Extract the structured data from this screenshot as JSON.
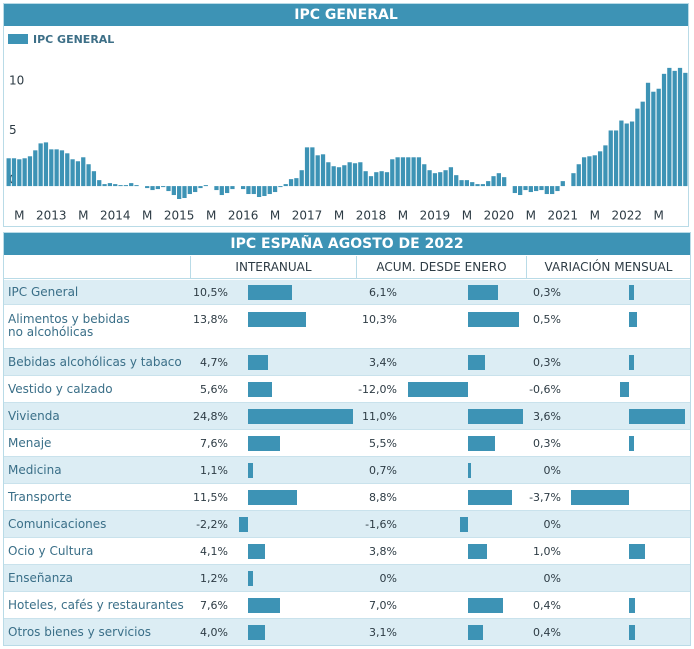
{
  "chart_data": {
    "type": "bar",
    "title": "IPC GENERAL",
    "categories": [
      null,
      null,
      "M",
      null,
      null,
      null,
      null,
      null,
      "2013",
      null,
      null,
      null,
      null,
      null,
      "M",
      null,
      null,
      null,
      null,
      null,
      "2014",
      null,
      null,
      null,
      null,
      null,
      "M",
      null,
      null,
      null,
      null,
      null,
      "2015",
      null,
      null,
      null,
      null,
      null,
      "M",
      null,
      null,
      null,
      null,
      null,
      "2016",
      null,
      null,
      null,
      null,
      null,
      "M",
      null,
      null,
      null,
      null,
      null,
      "2017",
      null,
      null,
      null,
      null,
      null,
      "M",
      null,
      null,
      null,
      null,
      null,
      "2018",
      null,
      null,
      null,
      null,
      null,
      "M",
      null,
      null,
      null,
      null,
      null,
      "2019",
      null,
      null,
      null,
      null,
      null,
      "M",
      null,
      null,
      null,
      null,
      null,
      "2020",
      null,
      null,
      null,
      null,
      null,
      "M",
      null,
      null,
      null,
      null,
      null,
      "2021",
      null,
      null,
      null,
      null,
      null,
      "M",
      null,
      null,
      null,
      null,
      null,
      "2022",
      null,
      null,
      null,
      null,
      null,
      "M",
      null,
      null,
      null,
      null,
      null
    ],
    "series": [
      {
        "name": "IPC GENERAL",
        "color": "#3d93b5",
        "values": [
          2.8,
          2.8,
          2.7,
          2.8,
          3.0,
          3.6,
          4.3,
          4.4,
          3.7,
          3.7,
          3.6,
          3.3,
          2.7,
          2.5,
          2.9,
          2.2,
          1.5,
          0.6,
          0.2,
          0.3,
          0.2,
          0.1,
          0.1,
          0.3,
          0.1,
          0.0,
          -0.2,
          -0.4,
          -0.3,
          -0.1,
          -0.5,
          -0.9,
          -1.3,
          -1.2,
          -0.8,
          -0.6,
          -0.2,
          0.1,
          0.0,
          -0.4,
          -0.9,
          -0.7,
          -0.3,
          0.0,
          -0.3,
          -0.8,
          -0.8,
          -1.1,
          -1.0,
          -0.8,
          -0.6,
          -0.1,
          0.2,
          0.7,
          0.8,
          1.6,
          3.9,
          3.9,
          3.1,
          3.2,
          2.4,
          2.0,
          1.9,
          2.1,
          2.4,
          2.3,
          2.4,
          1.5,
          1.0,
          1.4,
          1.5,
          1.4,
          2.7,
          2.9,
          2.9,
          2.9,
          2.9,
          2.9,
          2.2,
          1.6,
          1.3,
          1.4,
          1.6,
          1.9,
          1.1,
          0.6,
          0.6,
          0.4,
          0.2,
          0.2,
          0.5,
          1.0,
          1.3,
          0.9,
          0.0,
          -0.7,
          -0.9,
          -0.4,
          -0.6,
          -0.5,
          -0.4,
          -0.8,
          -0.8,
          -0.5,
          0.5,
          0.0,
          1.3,
          2.2,
          2.9,
          3.0,
          3.1,
          3.5,
          4.1,
          5.6,
          5.6,
          6.6,
          6.3,
          6.5,
          7.8,
          8.5,
          10.4,
          9.5,
          9.8,
          11.3,
          11.9,
          11.6,
          11.9,
          11.4
        ]
      }
    ],
    "ylim": [
      -1.4,
      13.8
    ],
    "yticks": [
      0,
      5,
      10
    ],
    "grid": false,
    "legend": "top-left"
  },
  "table": {
    "title": "IPC ESPAÑA AGOSTO DE 2022",
    "color": "#3d93b5",
    "columns": [
      {
        "name": "INTERANUAL",
        "xlim": [
          -2.6,
          25.3
        ]
      },
      {
        "name": "ACUM. DESDE ENERO",
        "xlim": [
          -12.5,
          11.3
        ]
      },
      {
        "name": "VARIACIÓN MENSUAL",
        "xlim": [
          -3.85,
          3.7
        ]
      }
    ],
    "rows": [
      {
        "label": "IPC General",
        "values": [
          10.5,
          6.1,
          0.3
        ],
        "value_labels": [
          "10,5%",
          "6,1%",
          "0,3%"
        ]
      },
      {
        "label": "Alimentos y bebidas no alcohólicas",
        "values": [
          13.8,
          10.3,
          0.5
        ],
        "value_labels": [
          "13,8%",
          "10,3%",
          "0,5%"
        ]
      },
      {
        "label": "Bebidas alcohólicas y tabaco",
        "values": [
          4.7,
          3.4,
          0.3
        ],
        "value_labels": [
          "4,7%",
          "3,4%",
          "0,3%"
        ]
      },
      {
        "label": "Vestido y calzado",
        "values": [
          5.6,
          -12.0,
          -0.6
        ],
        "value_labels": [
          "5,6%",
          "-12,0%",
          "-0,6%"
        ]
      },
      {
        "label": "Vivienda",
        "values": [
          24.8,
          11.0,
          3.6
        ],
        "value_labels": [
          "24,8%",
          "11,0%",
          "3,6%"
        ]
      },
      {
        "label": "Menaje",
        "values": [
          7.6,
          5.5,
          0.3
        ],
        "value_labels": [
          "7,6%",
          "5,5%",
          "0,3%"
        ]
      },
      {
        "label": "Medicina",
        "values": [
          1.1,
          0.7,
          0
        ],
        "value_labels": [
          "1,1%",
          "0,7%",
          "0%"
        ]
      },
      {
        "label": "Transporte",
        "values": [
          11.5,
          8.8,
          -3.7
        ],
        "value_labels": [
          "11,5%",
          "8,8%",
          "-3,7%"
        ]
      },
      {
        "label": "Comunicaciones",
        "values": [
          -2.2,
          -1.6,
          0
        ],
        "value_labels": [
          "-2,2%",
          "-1,6%",
          "0%"
        ]
      },
      {
        "label": "Ocio y Cultura",
        "values": [
          4.1,
          3.8,
          1.0
        ],
        "value_labels": [
          "4,1%",
          "3,8%",
          "1,0%"
        ]
      },
      {
        "label": "Enseñanza",
        "values": [
          1.2,
          0,
          0
        ],
        "value_labels": [
          "1,2%",
          "0%",
          "0%"
        ]
      },
      {
        "label": "Hoteles, cafés y restaurantes",
        "values": [
          7.6,
          7.0,
          0.4
        ],
        "value_labels": [
          "7,6%",
          "7,0%",
          "0,4%"
        ]
      },
      {
        "label": "Otros bienes y servicios",
        "values": [
          4.0,
          3.1,
          0.4
        ],
        "value_labels": [
          "4,0%",
          "3,1%",
          "0,4%"
        ]
      }
    ]
  }
}
